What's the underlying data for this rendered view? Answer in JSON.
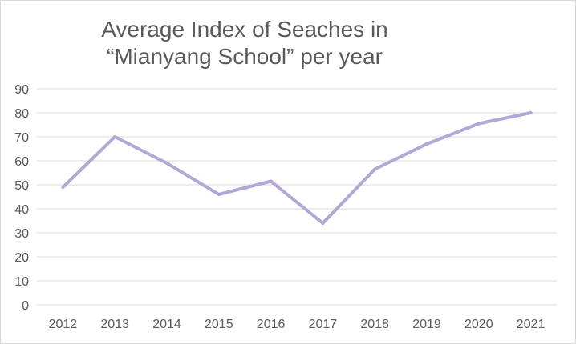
{
  "chart_data": {
    "type": "line",
    "title": "Average Index of Seaches in “Mianyang School” per year",
    "xlabel": "",
    "ylabel": "",
    "x": [
      "2012",
      "2013",
      "2014",
      "2015",
      "2016",
      "2017",
      "2018",
      "2019",
      "2020",
      "2021"
    ],
    "series": [
      {
        "values": [
          49,
          70,
          59,
          46,
          51.5,
          34,
          56.5,
          67,
          75.5,
          80
        ],
        "color": "#b4a7d6"
      }
    ],
    "ylim": [
      0,
      90
    ],
    "yticks": [
      0,
      10,
      20,
      30,
      40,
      50,
      60,
      70,
      80,
      90
    ],
    "grid": true,
    "legend": "none"
  }
}
